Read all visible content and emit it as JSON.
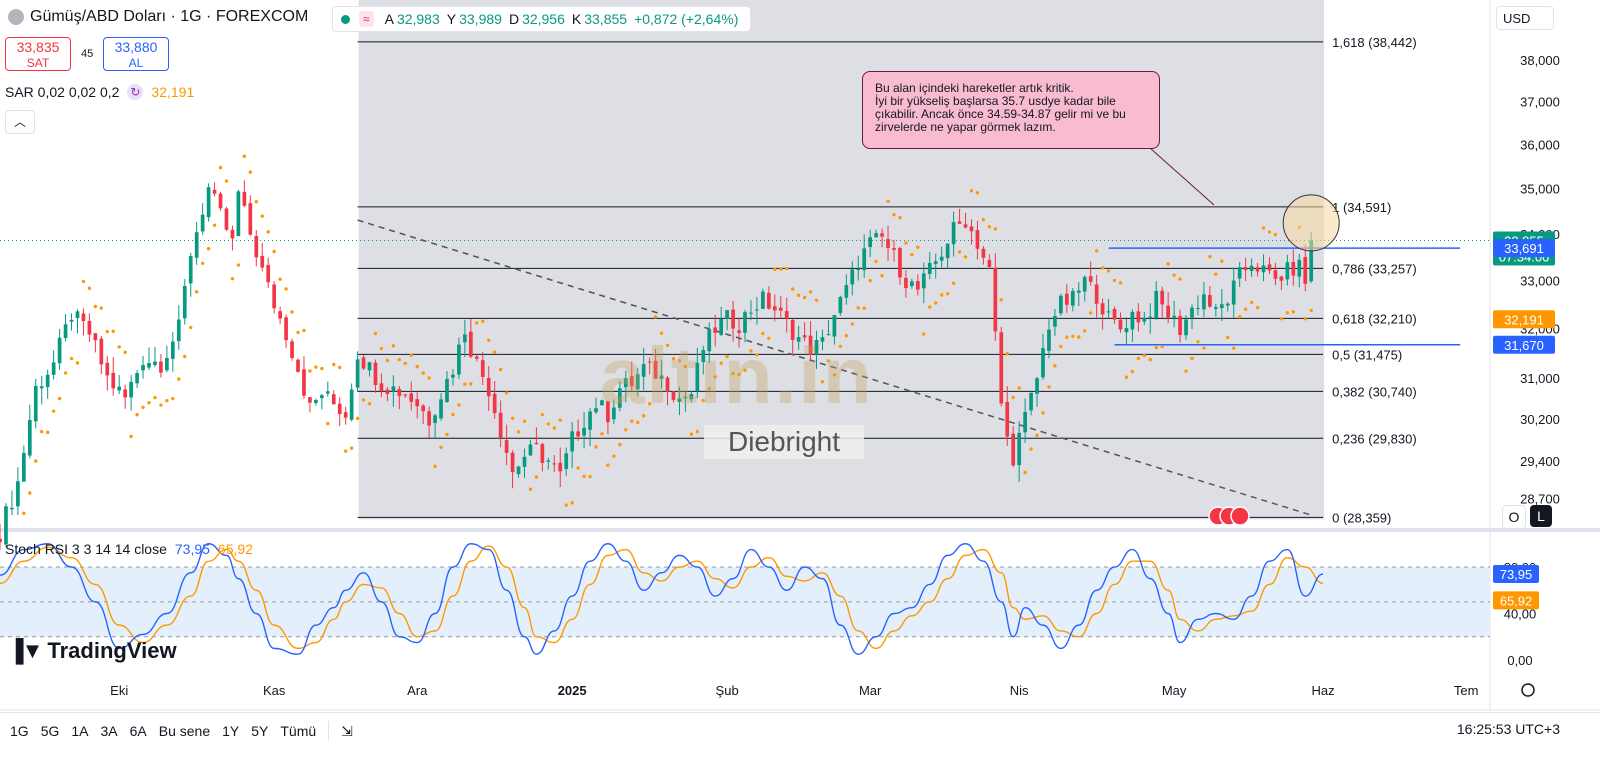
{
  "header": {
    "title": "Gümüş/ABD Doları · 1G · FOREXCOM",
    "ohlc": {
      "a_label": "A",
      "a": "32,983",
      "y_label": "Y",
      "y": "33,989",
      "d_label": "D",
      "d": "32,956",
      "k_label": "K",
      "k": "33,855",
      "change": "+0,872 (+2,64%)"
    },
    "sell_price": "33,835",
    "sell_label": "SAT",
    "spread": "45",
    "buy_price": "33,880",
    "buy_label": "AL",
    "sar_legend": "SAR 0,02 0,02 0,2",
    "sar_value": "32,191",
    "currency": "USD"
  },
  "note": "Bu alan içindeki hareketler artık kritik.\nİyi bir yükseliş başlarsa 35.7 usdye kadar bile çıkabilir. Ancak önce 34.59-34.87 gelir mi ve bu zirvelerde ne yapar görmek lazım.",
  "watermark": {
    "logo_text": "altın.in",
    "user": "Diebright"
  },
  "rsi": {
    "legend": "Stoch RSI 3 3 14 14 close",
    "k": "73,95",
    "d": "65,92"
  },
  "branding": "TradingView",
  "toolbar": {
    "ranges": [
      "1G",
      "5G",
      "1A",
      "3A",
      "6A",
      "Bu sene",
      "1Y",
      "5Y",
      "Tümü"
    ],
    "clock": "16:25:53 UTC+3"
  },
  "colors": {
    "up": "#089981",
    "down": "#f23645",
    "sar": "#ff9800",
    "k_line": "#2962ff",
    "d_line": "#ff9800",
    "fib": "#131722",
    "note_bg": "#f8bbd0"
  },
  "chart_data": {
    "type": "candlestick",
    "symbol": "XAGUSD",
    "y_ticks": [
      {
        "v": 38000,
        "l": "38,000"
      },
      {
        "v": 37000,
        "l": "37,000"
      },
      {
        "v": 36000,
        "l": "36,000"
      },
      {
        "v": 35000,
        "l": "35,000"
      },
      {
        "v": 34000,
        "l": "34,000"
      },
      {
        "v": 33000,
        "l": "33,000"
      },
      {
        "v": 32000,
        "l": "32,000"
      },
      {
        "v": 31000,
        "l": "31,000"
      },
      {
        "v": 30200,
        "l": "30,200"
      },
      {
        "v": 29400,
        "l": "29,400"
      },
      {
        "v": 28700,
        "l": "28,700"
      }
    ],
    "x_ticks": [
      {
        "i": 20,
        "l": "Eki"
      },
      {
        "i": 46,
        "l": "Kas"
      },
      {
        "i": 70,
        "l": "Ara"
      },
      {
        "i": 96,
        "l": "2025"
      },
      {
        "i": 122,
        "l": "Şub"
      },
      {
        "i": 146,
        "l": "Mar"
      },
      {
        "i": 171,
        "l": "Nis"
      },
      {
        "i": 197,
        "l": "May"
      },
      {
        "i": 222,
        "l": "Haz"
      },
      {
        "i": 246,
        "l": "Tem"
      }
    ],
    "fib_levels": [
      {
        "r": "1,618",
        "v": 38442,
        "l": "1,618 (38,442)"
      },
      {
        "r": "1",
        "v": 34591,
        "l": "1 (34,591)"
      },
      {
        "r": "0,786",
        "v": 33257,
        "l": "0,786 (33,257)"
      },
      {
        "r": "0,618",
        "v": 32210,
        "l": "0,618 (32,210)"
      },
      {
        "r": "0,5",
        "v": 31475,
        "l": "0,5 (31,475)"
      },
      {
        "r": "0,382",
        "v": 30740,
        "l": "0,382 (30,740)"
      },
      {
        "r": "0,236",
        "v": 29830,
        "l": "0,236 (29,830)"
      },
      {
        "r": "0",
        "v": 28359,
        "l": "0 (28,359)"
      }
    ],
    "price_labels": [
      {
        "v": 33855,
        "l": "33,855",
        "sub": "07:34:06",
        "kind": "last"
      },
      {
        "v": 33691,
        "l": "33,691",
        "kind": "blue"
      },
      {
        "v": 32191,
        "l": "32,191",
        "kind": "sar"
      },
      {
        "v": 31670,
        "l": "31,670",
        "kind": "blue"
      }
    ],
    "h_lines": [
      {
        "v": 33690,
        "from": 186,
        "to": 245
      },
      {
        "v": 31670,
        "from": 187,
        "to": 245
      }
    ],
    "trendline": [
      {
        "i": 60,
        "v": 34300
      },
      {
        "i": 220,
        "v": 28400
      }
    ],
    "anchors": [
      [
        0,
        28100
      ],
      [
        3,
        29000
      ],
      [
        6,
        30800
      ],
      [
        9,
        31300
      ],
      [
        12,
        32300
      ],
      [
        15,
        31900
      ],
      [
        18,
        31000
      ],
      [
        21,
        30600
      ],
      [
        24,
        31400
      ],
      [
        27,
        31300
      ],
      [
        30,
        32000
      ],
      [
        32,
        33600
      ],
      [
        35,
        35000
      ],
      [
        37,
        34400
      ],
      [
        39,
        33800
      ],
      [
        40,
        34900
      ],
      [
        42,
        34000
      ],
      [
        44,
        33200
      ],
      [
        46,
        32500
      ],
      [
        48,
        31900
      ],
      [
        50,
        31200
      ],
      [
        52,
        30400
      ],
      [
        54,
        30700
      ],
      [
        56,
        30500
      ],
      [
        58,
        30300
      ],
      [
        60,
        31500
      ],
      [
        62,
        31200
      ],
      [
        64,
        30900
      ],
      [
        66,
        30800
      ],
      [
        68,
        30700
      ],
      [
        70,
        30500
      ],
      [
        72,
        30200
      ],
      [
        74,
        30700
      ],
      [
        76,
        31200
      ],
      [
        78,
        32000
      ],
      [
        79,
        31600
      ],
      [
        80,
        31300
      ],
      [
        82,
        30800
      ],
      [
        84,
        30000
      ],
      [
        86,
        29200
      ],
      [
        88,
        29500
      ],
      [
        90,
        29600
      ],
      [
        92,
        29400
      ],
      [
        94,
        29100
      ],
      [
        96,
        29800
      ],
      [
        98,
        30200
      ],
      [
        100,
        30500
      ],
      [
        102,
        30300
      ],
      [
        104,
        30800
      ],
      [
        106,
        30900
      ],
      [
        108,
        31200
      ],
      [
        110,
        31100
      ],
      [
        112,
        30900
      ],
      [
        114,
        30600
      ],
      [
        116,
        30700
      ],
      [
        118,
        31600
      ],
      [
        120,
        32000
      ],
      [
        122,
        32200
      ],
      [
        124,
        32100
      ],
      [
        126,
        32400
      ],
      [
        128,
        32600
      ],
      [
        130,
        32400
      ],
      [
        132,
        32100
      ],
      [
        134,
        31800
      ],
      [
        136,
        31600
      ],
      [
        138,
        31700
      ],
      [
        140,
        32300
      ],
      [
        142,
        32800
      ],
      [
        144,
        33400
      ],
      [
        146,
        33800
      ],
      [
        148,
        33900
      ],
      [
        150,
        33500
      ],
      [
        152,
        33000
      ],
      [
        154,
        32800
      ],
      [
        156,
        33200
      ],
      [
        158,
        33600
      ],
      [
        160,
        34100
      ],
      [
        162,
        34300
      ],
      [
        164,
        33800
      ],
      [
        166,
        33200
      ],
      [
        168,
        30500
      ],
      [
        169,
        29800
      ],
      [
        170,
        29500
      ],
      [
        172,
        30200
      ],
      [
        174,
        31000
      ],
      [
        176,
        32100
      ],
      [
        178,
        32500
      ],
      [
        180,
        32600
      ],
      [
        182,
        33000
      ],
      [
        184,
        32700
      ],
      [
        186,
        32200
      ],
      [
        188,
        32000
      ],
      [
        190,
        32300
      ],
      [
        192,
        32200
      ],
      [
        194,
        32600
      ],
      [
        196,
        32300
      ],
      [
        198,
        32000
      ],
      [
        200,
        32400
      ],
      [
        202,
        32700
      ],
      [
        204,
        32300
      ],
      [
        206,
        32600
      ],
      [
        208,
        33100
      ],
      [
        210,
        33400
      ],
      [
        212,
        33200
      ],
      [
        214,
        33000
      ],
      [
        216,
        33200
      ],
      [
        218,
        33300
      ],
      [
        219,
        32983
      ],
      [
        220,
        33855
      ]
    ],
    "stoch_k": [
      [
        0,
        73
      ],
      [
        4,
        95
      ],
      [
        8,
        100
      ],
      [
        12,
        80
      ],
      [
        16,
        50
      ],
      [
        20,
        10
      ],
      [
        24,
        22
      ],
      [
        28,
        40
      ],
      [
        32,
        75
      ],
      [
        35,
        100
      ],
      [
        38,
        90
      ],
      [
        40,
        70
      ],
      [
        43,
        40
      ],
      [
        46,
        10
      ],
      [
        50,
        5
      ],
      [
        53,
        30
      ],
      [
        56,
        45
      ],
      [
        58,
        60
      ],
      [
        61,
        75
      ],
      [
        64,
        50
      ],
      [
        67,
        20
      ],
      [
        70,
        15
      ],
      [
        73,
        40
      ],
      [
        76,
        80
      ],
      [
        79,
        100
      ],
      [
        82,
        95
      ],
      [
        85,
        60
      ],
      [
        88,
        20
      ],
      [
        90,
        5
      ],
      [
        93,
        25
      ],
      [
        96,
        55
      ],
      [
        99,
        85
      ],
      [
        102,
        100
      ],
      [
        105,
        85
      ],
      [
        108,
        60
      ],
      [
        111,
        75
      ],
      [
        114,
        90
      ],
      [
        117,
        80
      ],
      [
        120,
        55
      ],
      [
        123,
        70
      ],
      [
        126,
        95
      ],
      [
        129,
        80
      ],
      [
        132,
        60
      ],
      [
        135,
        80
      ],
      [
        138,
        70
      ],
      [
        141,
        30
      ],
      [
        144,
        5
      ],
      [
        147,
        20
      ],
      [
        150,
        40
      ],
      [
        153,
        45
      ],
      [
        156,
        65
      ],
      [
        159,
        90
      ],
      [
        162,
        100
      ],
      [
        165,
        85
      ],
      [
        168,
        50
      ],
      [
        170,
        20
      ],
      [
        172,
        45
      ],
      [
        175,
        30
      ],
      [
        178,
        10
      ],
      [
        181,
        30
      ],
      [
        184,
        60
      ],
      [
        187,
        80
      ],
      [
        190,
        95
      ],
      [
        193,
        70
      ],
      [
        196,
        40
      ],
      [
        198,
        15
      ],
      [
        201,
        35
      ],
      [
        204,
        40
      ],
      [
        207,
        35
      ],
      [
        210,
        55
      ],
      [
        213,
        85
      ],
      [
        216,
        95
      ],
      [
        219,
        55
      ],
      [
        222,
        74
      ]
    ],
    "stoch_d": [
      [
        0,
        66
      ],
      [
        4,
        85
      ],
      [
        8,
        97
      ],
      [
        12,
        88
      ],
      [
        16,
        65
      ],
      [
        20,
        30
      ],
      [
        24,
        15
      ],
      [
        28,
        30
      ],
      [
        32,
        55
      ],
      [
        35,
        85
      ],
      [
        38,
        95
      ],
      [
        40,
        85
      ],
      [
        43,
        60
      ],
      [
        46,
        30
      ],
      [
        50,
        10
      ],
      [
        53,
        15
      ],
      [
        56,
        35
      ],
      [
        58,
        50
      ],
      [
        61,
        65
      ],
      [
        64,
        62
      ],
      [
        67,
        40
      ],
      [
        70,
        20
      ],
      [
        73,
        25
      ],
      [
        76,
        55
      ],
      [
        79,
        85
      ],
      [
        82,
        98
      ],
      [
        85,
        80
      ],
      [
        88,
        45
      ],
      [
        90,
        20
      ],
      [
        93,
        15
      ],
      [
        96,
        35
      ],
      [
        99,
        65
      ],
      [
        102,
        90
      ],
      [
        105,
        95
      ],
      [
        108,
        75
      ],
      [
        111,
        68
      ],
      [
        114,
        80
      ],
      [
        117,
        85
      ],
      [
        120,
        70
      ],
      [
        123,
        62
      ],
      [
        126,
        80
      ],
      [
        129,
        88
      ],
      [
        132,
        72
      ],
      [
        135,
        68
      ],
      [
        138,
        75
      ],
      [
        141,
        55
      ],
      [
        144,
        25
      ],
      [
        147,
        10
      ],
      [
        150,
        25
      ],
      [
        153,
        38
      ],
      [
        156,
        50
      ],
      [
        159,
        70
      ],
      [
        162,
        90
      ],
      [
        165,
        95
      ],
      [
        168,
        75
      ],
      [
        170,
        45
      ],
      [
        172,
        35
      ],
      [
        175,
        38
      ],
      [
        178,
        25
      ],
      [
        181,
        20
      ],
      [
        184,
        40
      ],
      [
        187,
        65
      ],
      [
        190,
        85
      ],
      [
        193,
        85
      ],
      [
        196,
        60
      ],
      [
        198,
        35
      ],
      [
        201,
        25
      ],
      [
        204,
        35
      ],
      [
        207,
        38
      ],
      [
        210,
        42
      ],
      [
        213,
        65
      ],
      [
        216,
        88
      ],
      [
        219,
        80
      ],
      [
        222,
        66
      ]
    ],
    "rsi_ticks": [
      {
        "v": 80,
        "l": "80,00"
      },
      {
        "v": 40,
        "l": "40,00"
      },
      {
        "v": 0,
        "l": "0,00"
      }
    ],
    "rsi_band": [
      20,
      80
    ],
    "shade_range": [
      60,
      222
    ]
  }
}
